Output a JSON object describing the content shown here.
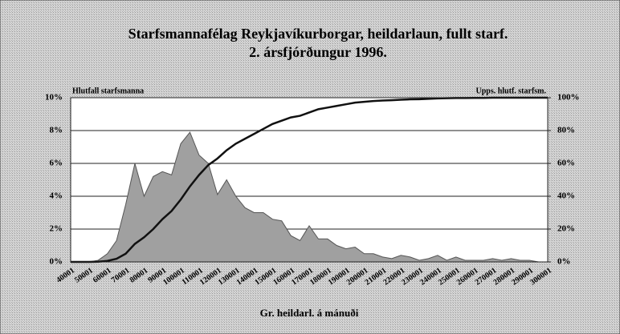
{
  "chart_data": {
    "type": "area_line",
    "title": "Starfsmannafélag Reykjavíkurborgar, heildarlaun, fullt starf.",
    "subtitle": "2. ársfjórðungur 1996.",
    "xlabel": "Gr. heildarl. á mánuði",
    "ylabel": "Hlutfall starfsmanna",
    "y2label": "Upps. hlutf. starfsm.",
    "categories": [
      "40001",
      null,
      "50001",
      null,
      "60001",
      null,
      "70001",
      null,
      "80001",
      null,
      "90001",
      null,
      "100001",
      null,
      "110001",
      null,
      "120001",
      null,
      "130001",
      null,
      "140001",
      null,
      "150001",
      null,
      "160001",
      null,
      "170001",
      null,
      "180001",
      null,
      "190001",
      null,
      "200001",
      null,
      "210001",
      null,
      "220001",
      null,
      "230001",
      null,
      "240001",
      null,
      "250001",
      null,
      "260001",
      null,
      "270001",
      null,
      "280001",
      null,
      "290001",
      null,
      "300001"
    ],
    "series": [
      {
        "name": "Hlutfall starfsmanna",
        "color": "#a0a0a0",
        "values": [
          0,
          0,
          0,
          0.1,
          0.5,
          1.3,
          3.5,
          6.0,
          4.0,
          5.2,
          5.5,
          5.3,
          7.2,
          7.9,
          6.5,
          6.0,
          4.1,
          5.0,
          4.0,
          3.3,
          3.0,
          3.0,
          2.6,
          2.5,
          1.6,
          1.3,
          2.2,
          1.4,
          1.4,
          1.0,
          0.8,
          0.9,
          0.5,
          0.5,
          0.3,
          0.2,
          0.4,
          0.3,
          0.1,
          0.2,
          0.4,
          0.1,
          0.3,
          0.1,
          0.1,
          0.1,
          0.2,
          0.1,
          0.2,
          0.1,
          0.1,
          0,
          0
        ]
      },
      {
        "name": "Upps. hlutf. starfsm.",
        "color": "#111111",
        "axis": "y2",
        "values": [
          0,
          0,
          0,
          0.1,
          0.6,
          1.9,
          5,
          11,
          15,
          20,
          26,
          31,
          38,
          46,
          53,
          59,
          63,
          68,
          72,
          75,
          78,
          81,
          84,
          86,
          88,
          89,
          91,
          93,
          94,
          95,
          96,
          97,
          97.5,
          98,
          98.3,
          98.5,
          98.8,
          99,
          99.1,
          99.3,
          99.6,
          99.7,
          99.8,
          99.8,
          99.9,
          99.9,
          100,
          100,
          100,
          100,
          100,
          100,
          100
        ]
      }
    ],
    "ylim": [
      0,
      10
    ],
    "yticks": [
      {
        "value": 0,
        "label": "0%"
      },
      {
        "value": 2,
        "label": "2%"
      },
      {
        "value": 4,
        "label": "4%"
      },
      {
        "value": 6,
        "label": "6%"
      },
      {
        "value": 8,
        "label": "8%"
      },
      {
        "value": 10,
        "label": "10%"
      }
    ],
    "y2lim": [
      0,
      100
    ],
    "y2ticks": [
      {
        "value": 0,
        "label": "0%"
      },
      {
        "value": 20,
        "label": "20%"
      },
      {
        "value": 40,
        "label": "40%"
      },
      {
        "value": 60,
        "label": "60%"
      },
      {
        "value": 80,
        "label": "80%"
      },
      {
        "value": 100,
        "label": "100%"
      }
    ],
    "grid": true
  }
}
